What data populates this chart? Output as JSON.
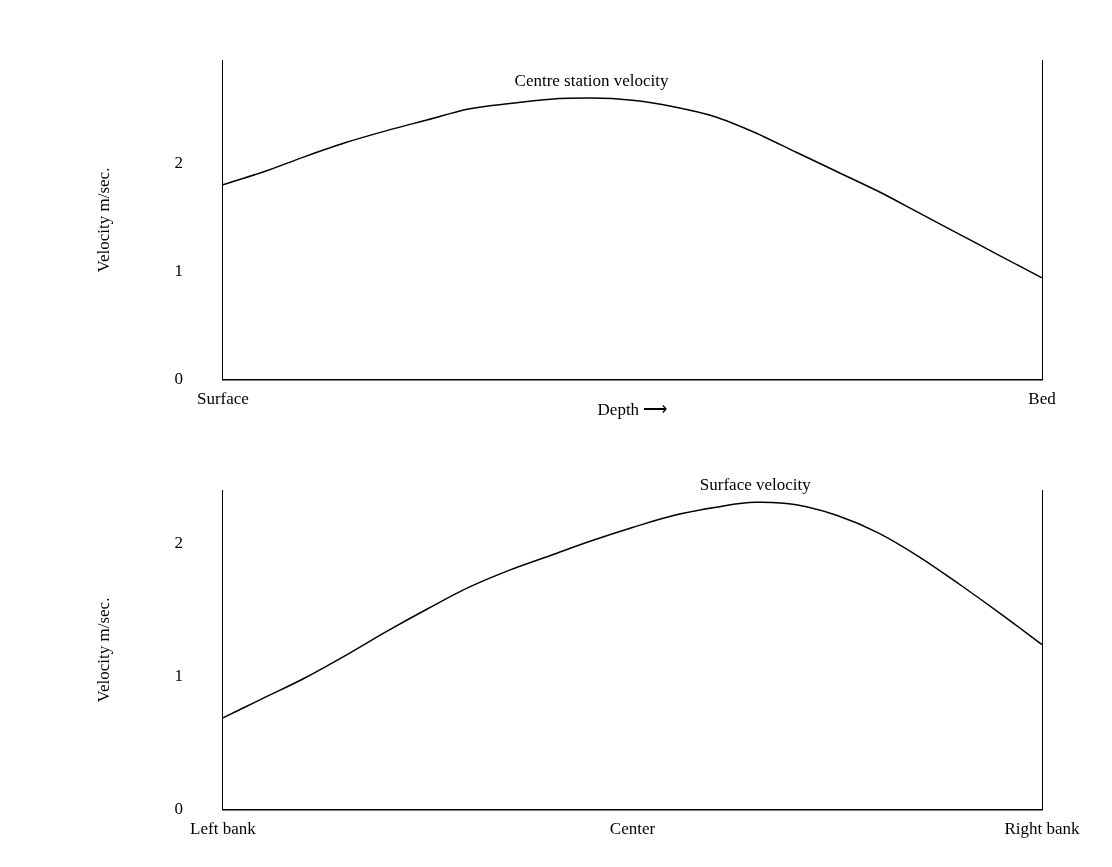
{
  "chart_data": [
    {
      "type": "line",
      "ylabel": "Velocity m/sec.",
      "xlabel": "Depth ⟶",
      "categories": [
        "Surface",
        null,
        null,
        null,
        null,
        null,
        null,
        null,
        null,
        null,
        null,
        null,
        null,
        null,
        null,
        null,
        null,
        null,
        null,
        null,
        "Bed"
      ],
      "series": [
        {
          "name": "Centre station velocity",
          "color": "#000000",
          "values": [
            1.8,
            1.92,
            2.06,
            2.19,
            2.3,
            2.4,
            2.5,
            2.55,
            2.59,
            2.6,
            2.58,
            2.52,
            2.43,
            2.28,
            2.1,
            1.92,
            1.74,
            1.54,
            1.34,
            1.14,
            0.94
          ]
        }
      ],
      "ylim": [
        0,
        2.95
      ],
      "yticks": [
        0,
        1,
        2
      ],
      "grid": false,
      "legend": false,
      "marker": "none",
      "line_style": "solid"
    },
    {
      "type": "line",
      "ylabel": "Velocity m/sec.",
      "categories": [
        "Left bank",
        null,
        null,
        null,
        null,
        null,
        null,
        null,
        null,
        null,
        "Center",
        null,
        null,
        null,
        null,
        null,
        null,
        null,
        null,
        null,
        "Right bank"
      ],
      "series": [
        {
          "name": "Surface velocity",
          "color": "#000000",
          "values": [
            0.69,
            0.84,
            0.99,
            1.16,
            1.34,
            1.51,
            1.67,
            1.8,
            1.91,
            2.02,
            2.12,
            2.21,
            2.27,
            2.31,
            2.29,
            2.21,
            2.08,
            1.9,
            1.69,
            1.47,
            1.24
          ]
        }
      ],
      "ylim": [
        0,
        2.4
      ],
      "yticks": [
        0,
        1,
        2
      ],
      "grid": false,
      "legend": false,
      "marker": "none",
      "line_style": "solid"
    }
  ]
}
